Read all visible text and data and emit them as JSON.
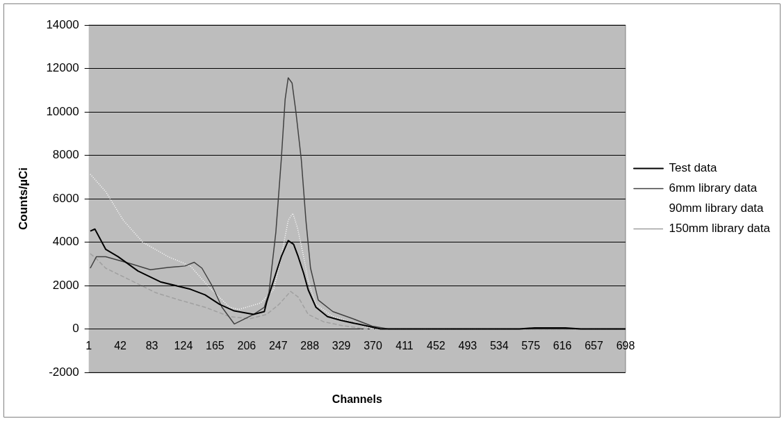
{
  "chart_data": {
    "type": "line",
    "xlabel": "Channels",
    "ylabel": "Counts/µCi",
    "xlim": [
      1,
      698
    ],
    "xticks": [
      1,
      42,
      83,
      124,
      165,
      206,
      247,
      288,
      329,
      370,
      411,
      452,
      493,
      534,
      575,
      616,
      657,
      698
    ],
    "ylim": [
      -2000,
      14000
    ],
    "yticks": [
      -2000,
      0,
      2000,
      4000,
      6000,
      8000,
      10000,
      12000,
      14000
    ],
    "grid": "y",
    "legend": "right",
    "marker": "none",
    "series": [
      {
        "name": "Test data",
        "color": "#000000",
        "line_style": "solid",
        "x": [
          3,
          9,
          23,
          39,
          65,
          94,
          133,
          152,
          171,
          190,
          215,
          229,
          232,
          241,
          251,
          260,
          267,
          273,
          280,
          286,
          296,
          311,
          328,
          350,
          380,
          450,
          560,
          580,
          620,
          640,
          698
        ],
        "values": [
          4510,
          4600,
          3670,
          3330,
          2670,
          2170,
          1830,
          1570,
          1130,
          830,
          670,
          800,
          1230,
          2230,
          3330,
          4070,
          3900,
          3330,
          2570,
          1800,
          1000,
          570,
          400,
          230,
          0,
          0,
          0,
          50,
          50,
          0,
          0
        ]
      },
      {
        "name": "6mm library data",
        "color": "#404040",
        "line_style": "solid",
        "x": [
          3,
          11,
          23,
          56,
          81,
          104,
          126,
          138,
          148,
          161,
          174,
          190,
          215,
          229,
          235,
          244,
          251,
          256,
          260,
          265,
          270,
          277,
          283,
          289,
          299,
          318,
          344,
          369,
          390,
          698
        ],
        "values": [
          2800,
          3330,
          3330,
          3000,
          2730,
          2830,
          2900,
          3070,
          2800,
          2000,
          1000,
          230,
          670,
          1000,
          1670,
          4470,
          7800,
          10570,
          11570,
          11330,
          10000,
          7800,
          5000,
          2800,
          1330,
          800,
          470,
          130,
          0,
          0
        ]
      },
      {
        "name": "90mm library data",
        "color": "#ffffff",
        "line_style": "dotted",
        "x": [
          3,
          23,
          46,
          71,
          104,
          133,
          158,
          184,
          196,
          222,
          225,
          241,
          251,
          260,
          266,
          272,
          280,
          286,
          296,
          318,
          344,
          369,
          390,
          698
        ],
        "values": [
          7130,
          6330,
          5000,
          4000,
          3330,
          2900,
          1900,
          1000,
          900,
          1170,
          1230,
          1800,
          3330,
          5000,
          5330,
          4670,
          3330,
          2230,
          1130,
          570,
          300,
          0,
          0,
          0
        ]
      },
      {
        "name": "150mm library data",
        "color": "#a0a0a0",
        "line_style": "dashed",
        "x": [
          3,
          11,
          23,
          56,
          88,
          119,
          152,
          184,
          210,
          232,
          248,
          263,
          273,
          286,
          306,
          328,
          360,
          698
        ],
        "values": [
          3470,
          3230,
          2800,
          2230,
          1670,
          1330,
          1000,
          570,
          470,
          670,
          1130,
          1730,
          1470,
          670,
          330,
          170,
          0,
          0
        ]
      }
    ]
  }
}
